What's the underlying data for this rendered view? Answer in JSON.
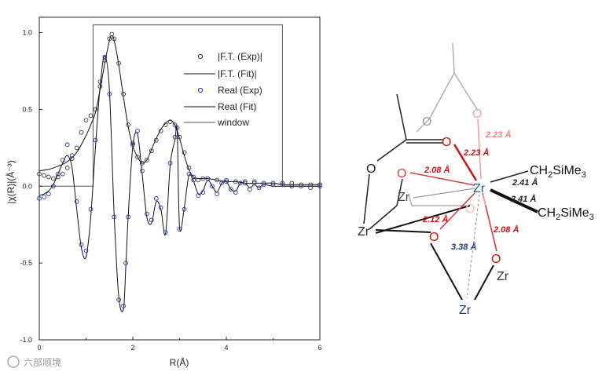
{
  "chart_data": {
    "type": "line",
    "xlabel": "R(Å)",
    "ylabel": "|χ(R)|(Å⁻³)",
    "xlim": [
      0,
      6
    ],
    "ylim": [
      -1.0,
      1.1
    ],
    "x_ticks": [
      0,
      2,
      4,
      6
    ],
    "y_ticks": [
      -1.0,
      -0.5,
      0.0,
      0.5,
      1.0
    ],
    "y_tick_labels": [
      "-1.0",
      "-0.5",
      "0.0",
      "0.5",
      "1.0"
    ],
    "grid": false,
    "legend_position": "top-right",
    "series": [
      {
        "name": "|F.T. (Exp)|",
        "style": "open-circle",
        "color": "#333333",
        "x": [
          0.0,
          0.1,
          0.2,
          0.3,
          0.4,
          0.5,
          0.6,
          0.7,
          0.8,
          0.9,
          1.0,
          1.1,
          1.2,
          1.3,
          1.4,
          1.5,
          1.55,
          1.6,
          1.7,
          1.8,
          1.9,
          2.0,
          2.1,
          2.2,
          2.3,
          2.4,
          2.5,
          2.6,
          2.7,
          2.8,
          2.9,
          3.0,
          3.1,
          3.2,
          3.3,
          3.4,
          3.5,
          3.6,
          3.8,
          4.0,
          4.2,
          4.4,
          4.6,
          4.8,
          5.0,
          5.2,
          5.4,
          5.6,
          5.8,
          6.0
        ],
        "y": [
          0.08,
          0.07,
          0.06,
          0.05,
          0.06,
          0.08,
          0.12,
          0.18,
          0.25,
          0.35,
          0.43,
          0.46,
          0.5,
          0.65,
          0.82,
          0.96,
          0.99,
          0.96,
          0.8,
          0.6,
          0.4,
          0.27,
          0.19,
          0.15,
          0.17,
          0.23,
          0.3,
          0.36,
          0.4,
          0.42,
          0.4,
          0.32,
          0.22,
          0.12,
          0.06,
          0.04,
          0.05,
          0.05,
          0.04,
          0.03,
          0.03,
          0.02,
          0.03,
          0.02,
          0.02,
          0.02,
          0.02,
          0.01,
          0.01,
          0.01
        ]
      },
      {
        "name": "|F.T. (Fit)|",
        "style": "line",
        "color": "#111111",
        "x": [
          0.0,
          0.2,
          0.4,
          0.6,
          0.8,
          1.0,
          1.1,
          1.2,
          1.3,
          1.4,
          1.5,
          1.55,
          1.6,
          1.7,
          1.8,
          1.9,
          2.0,
          2.1,
          2.2,
          2.3,
          2.4,
          2.5,
          2.6,
          2.7,
          2.8,
          2.9,
          3.0,
          3.1,
          3.2,
          3.3,
          3.4,
          3.5,
          3.6,
          3.8,
          4.0,
          4.2,
          4.4,
          4.6,
          4.8,
          5.0,
          5.2,
          5.4,
          5.6,
          5.8,
          6.0
        ],
        "y": [
          0.1,
          0.11,
          0.13,
          0.16,
          0.22,
          0.33,
          0.4,
          0.48,
          0.63,
          0.8,
          0.95,
          0.98,
          0.95,
          0.79,
          0.58,
          0.39,
          0.26,
          0.19,
          0.15,
          0.17,
          0.24,
          0.31,
          0.37,
          0.41,
          0.43,
          0.4,
          0.31,
          0.2,
          0.11,
          0.06,
          0.05,
          0.05,
          0.05,
          0.04,
          0.03,
          0.03,
          0.02,
          0.02,
          0.02,
          0.02,
          0.01,
          0.01,
          0.01,
          0.01,
          0.01
        ]
      },
      {
        "name": "Real (Exp)",
        "style": "open-circle",
        "color": "#2233aa",
        "x": [
          0.0,
          0.1,
          0.2,
          0.3,
          0.4,
          0.5,
          0.6,
          0.7,
          0.8,
          0.9,
          1.0,
          1.1,
          1.2,
          1.3,
          1.4,
          1.5,
          1.6,
          1.7,
          1.8,
          1.85,
          1.9,
          2.0,
          2.1,
          2.2,
          2.3,
          2.4,
          2.5,
          2.6,
          2.7,
          2.8,
          2.9,
          2.95,
          3.0,
          3.1,
          3.2,
          3.3,
          3.4,
          3.5,
          3.6,
          3.7,
          3.8,
          3.9,
          4.0,
          4.1,
          4.2,
          4.3,
          4.4,
          4.5,
          4.6,
          4.7,
          4.8,
          5.0,
          5.2,
          5.4,
          5.6,
          5.8,
          6.0
        ],
        "y": [
          -0.08,
          -0.07,
          -0.05,
          0.0,
          0.08,
          0.17,
          0.27,
          0.2,
          -0.1,
          -0.38,
          -0.42,
          -0.15,
          0.3,
          0.68,
          0.84,
          0.6,
          -0.2,
          -0.74,
          -0.78,
          -0.5,
          -0.2,
          0.28,
          0.36,
          0.1,
          -0.18,
          -0.22,
          -0.08,
          -0.14,
          -0.3,
          0.15,
          0.32,
          0.38,
          -0.28,
          -0.15,
          0.08,
          0.04,
          -0.06,
          -0.04,
          0.05,
          0.0,
          -0.05,
          0.02,
          0.04,
          -0.02,
          -0.04,
          0.02,
          0.03,
          -0.02,
          0.02,
          -0.01,
          0.01,
          0.01,
          0.01,
          0.0,
          0.0,
          -0.01,
          0.0
        ]
      },
      {
        "name": "Real (Fit)",
        "style": "line",
        "color": "#111111",
        "x": [
          0.0,
          0.1,
          0.2,
          0.3,
          0.4,
          0.5,
          0.6,
          0.7,
          0.8,
          0.9,
          1.0,
          1.1,
          1.2,
          1.3,
          1.4,
          1.5,
          1.6,
          1.7,
          1.8,
          1.85,
          1.9,
          2.0,
          2.1,
          2.2,
          2.3,
          2.4,
          2.5,
          2.6,
          2.7,
          2.8,
          2.9,
          2.95,
          3.0,
          3.1,
          3.2,
          3.3,
          3.4,
          3.5,
          3.6,
          3.7,
          3.8,
          3.9,
          4.0,
          4.1,
          4.2,
          4.3,
          4.4,
          4.5,
          4.6,
          4.7,
          4.8,
          5.0,
          5.2,
          5.4,
          5.6,
          5.8,
          6.0
        ],
        "y": [
          -0.06,
          -0.05,
          -0.03,
          0.01,
          0.08,
          0.15,
          0.2,
          0.12,
          -0.15,
          -0.4,
          -0.46,
          -0.2,
          0.25,
          0.65,
          0.85,
          0.62,
          -0.18,
          -0.72,
          -0.8,
          -0.52,
          -0.2,
          0.26,
          0.34,
          0.08,
          -0.2,
          -0.24,
          -0.1,
          -0.15,
          -0.31,
          0.14,
          0.3,
          0.36,
          -0.27,
          -0.14,
          0.07,
          0.03,
          -0.05,
          -0.03,
          0.04,
          0.0,
          -0.04,
          0.02,
          0.03,
          -0.02,
          -0.03,
          0.02,
          0.02,
          -0.01,
          0.01,
          -0.01,
          0.01,
          0.0,
          0.0,
          0.0,
          0.0,
          0.0,
          0.0
        ]
      },
      {
        "name": "window",
        "style": "step-line",
        "color": "#555555",
        "x": [
          0.0,
          1.15,
          1.15,
          5.2,
          5.2,
          6.0
        ],
        "y": [
          0.0,
          0.0,
          1.05,
          1.05,
          0.0,
          0.0
        ]
      }
    ]
  },
  "structure": {
    "atoms": {
      "zr_center": "Zr",
      "zr_left_inner": "Zr",
      "zr_left_outer": "Zr",
      "zr_right": "Zr",
      "zr_bottom": "Zr",
      "o_left": "O",
      "o_inner": "O",
      "o_carbonyl": "O",
      "o_top_faded": "O",
      "o_back_faded": "O",
      "o_lower_left": "O",
      "o_lower_right": "O",
      "o_hidden": "O"
    },
    "groups": {
      "upper_main": "CH",
      "upper_sub": "2",
      "upper_rest": "SiMe",
      "upper_sub2": "3",
      "lower_main": "CH",
      "lower_sub": "2",
      "lower_rest": "SiMe",
      "lower_sub2": "3"
    },
    "distances": {
      "d_top_faded": "2.23 Å",
      "d_carbonyl": "2.23 Å",
      "d_inner": "2.08 Å",
      "d_upper_alkyl": "2.41 Å",
      "d_lower_alkyl": "2.41 Å",
      "d_lower_left": "2.12 Å",
      "d_lower_right": "2.08 Å",
      "d_zr_zr": "3.38 Å"
    },
    "colors": {
      "zr": "#1f5f8b",
      "oxygen": "#cc1111",
      "bond_red": "#d84040",
      "bond_faded": "#f0a0a0",
      "dist_red": "#cc1111",
      "dist_dark": "#222222",
      "dist_blue": "#1f3f7f",
      "faded_gray": "#999999"
    }
  },
  "watermark": {
    "text": "六部顺境"
  }
}
